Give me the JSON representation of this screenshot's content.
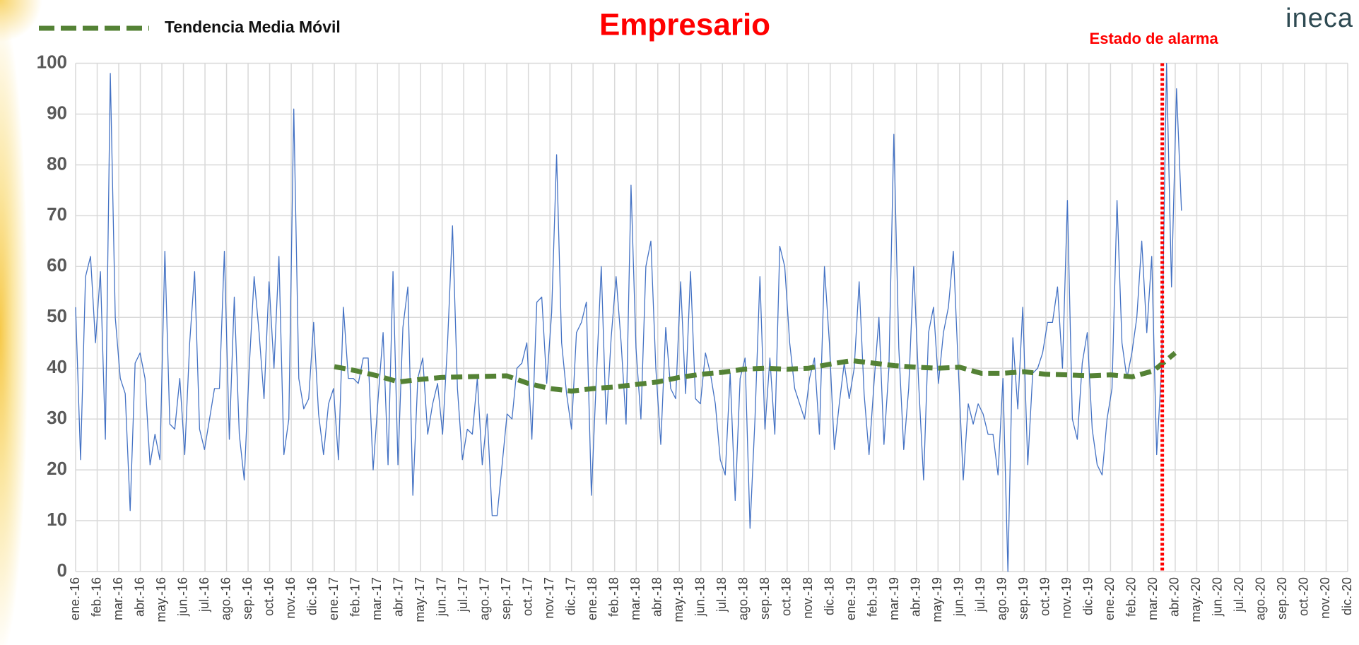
{
  "chart_data": {
    "type": "line",
    "title": "Empresario",
    "logo": "ineca",
    "xlim": [
      0,
      59
    ],
    "xticks": [
      {
        "value": 0,
        "label": "ene.-16"
      },
      {
        "value": 1,
        "label": "feb.-16"
      },
      {
        "value": 2,
        "label": "mar.-16"
      },
      {
        "value": 3,
        "label": "abr.-16"
      },
      {
        "value": 4,
        "label": "may.-16"
      },
      {
        "value": 5,
        "label": "jun.-16"
      },
      {
        "value": 6,
        "label": "jul.-16"
      },
      {
        "value": 7,
        "label": "ago.-16"
      },
      {
        "value": 8,
        "label": "sep.-16"
      },
      {
        "value": 9,
        "label": "oct.-16"
      },
      {
        "value": 10,
        "label": "nov.-16"
      },
      {
        "value": 11,
        "label": "dic.-16"
      },
      {
        "value": 12,
        "label": "ene.-17"
      },
      {
        "value": 13,
        "label": "feb.-17"
      },
      {
        "value": 14,
        "label": "mar.-17"
      },
      {
        "value": 15,
        "label": "abr.-17"
      },
      {
        "value": 16,
        "label": "may.-17"
      },
      {
        "value": 17,
        "label": "jun.-17"
      },
      {
        "value": 18,
        "label": "jul.-17"
      },
      {
        "value": 19,
        "label": "ago.-17"
      },
      {
        "value": 20,
        "label": "sep.-17"
      },
      {
        "value": 21,
        "label": "oct.-17"
      },
      {
        "value": 22,
        "label": "nov.-17"
      },
      {
        "value": 23,
        "label": "dic.-17"
      },
      {
        "value": 24,
        "label": "ene.-18"
      },
      {
        "value": 25,
        "label": "feb.-18"
      },
      {
        "value": 26,
        "label": "mar.-18"
      },
      {
        "value": 27,
        "label": "abr.-18"
      },
      {
        "value": 28,
        "label": "may.-18"
      },
      {
        "value": 29,
        "label": "jun.-18"
      },
      {
        "value": 30,
        "label": "jul.-18"
      },
      {
        "value": 31,
        "label": "ago.-18"
      },
      {
        "value": 32,
        "label": "sep.-18"
      },
      {
        "value": 33,
        "label": "oct.-18"
      },
      {
        "value": 34,
        "label": "nov.-18"
      },
      {
        "value": 35,
        "label": "dic.-18"
      },
      {
        "value": 36,
        "label": "ene.-19"
      },
      {
        "value": 37,
        "label": "feb.-19"
      },
      {
        "value": 38,
        "label": "mar.-19"
      },
      {
        "value": 39,
        "label": "abr.-19"
      },
      {
        "value": 40,
        "label": "may.-19"
      },
      {
        "value": 41,
        "label": "jun.-19"
      },
      {
        "value": 42,
        "label": "jul.-19"
      },
      {
        "value": 43,
        "label": "ago.-19"
      },
      {
        "value": 44,
        "label": "sep.-19"
      },
      {
        "value": 45,
        "label": "oct.-19"
      },
      {
        "value": 46,
        "label": "nov.-19"
      },
      {
        "value": 47,
        "label": "dic.-19"
      },
      {
        "value": 48,
        "label": "ene.-20"
      },
      {
        "value": 49,
        "label": "feb.-20"
      },
      {
        "value": 50,
        "label": "mar.-20"
      },
      {
        "value": 51,
        "label": "abr.-20"
      },
      {
        "value": 52,
        "label": "may.-20"
      },
      {
        "value": 53,
        "label": "jun.-20"
      },
      {
        "value": 54,
        "label": "jul.-20"
      },
      {
        "value": 55,
        "label": "ago.-20"
      },
      {
        "value": 56,
        "label": "sep.-20"
      },
      {
        "value": 57,
        "label": "oct.-20"
      },
      {
        "value": 58,
        "label": "nov.-20"
      },
      {
        "value": 59,
        "label": "dic.-20"
      }
    ],
    "ylim": [
      0,
      100
    ],
    "yticks": [
      0,
      10,
      20,
      30,
      40,
      50,
      60,
      70,
      80,
      90,
      100
    ],
    "grid": true,
    "series": [
      {
        "color": "#4472c4",
        "x": [
          0,
          0.23,
          0.46,
          0.69,
          0.92,
          1.15,
          1.38,
          1.61,
          1.84,
          2.07,
          2.3,
          2.53,
          2.76,
          2.99,
          3.22,
          3.45,
          3.68,
          3.91,
          4.14,
          4.37,
          4.6,
          4.83,
          5.06,
          5.29,
          5.52,
          5.75,
          5.98,
          6.21,
          6.44,
          6.67,
          6.9,
          7.13,
          7.36,
          7.59,
          7.82,
          8.05,
          8.28,
          8.51,
          8.74,
          8.97,
          9.2,
          9.43,
          9.66,
          9.89,
          10.12,
          10.35,
          10.58,
          10.81,
          11.04,
          11.27,
          11.5,
          11.73,
          11.96,
          12.19,
          12.42,
          12.65,
          12.88,
          13.11,
          13.34,
          13.57,
          13.8,
          14.03,
          14.26,
          14.49,
          14.72,
          14.95,
          15.18,
          15.41,
          15.64,
          15.87,
          16.1,
          16.33,
          16.56,
          16.79,
          17.02,
          17.25,
          17.48,
          17.71,
          17.94,
          18.17,
          18.4,
          18.63,
          18.86,
          19.09,
          19.32,
          19.55,
          19.78,
          20.01,
          20.24,
          20.47,
          20.7,
          20.93,
          21.16,
          21.39,
          21.62,
          21.85,
          22.08,
          22.31,
          22.54,
          22.77,
          23,
          23.23,
          23.46,
          23.69,
          23.92,
          24.15,
          24.38,
          24.61,
          24.84,
          25.07,
          25.3,
          25.53,
          25.76,
          25.99,
          26.22,
          26.45,
          26.68,
          26.91,
          27.14,
          27.37,
          27.6,
          27.83,
          28.06,
          28.29,
          28.52,
          28.75,
          28.98,
          29.21,
          29.44,
          29.67,
          29.9,
          30.13,
          30.36,
          30.59,
          30.82,
          31.05,
          31.28,
          31.51,
          31.74,
          31.97,
          32.2,
          32.43,
          32.66,
          32.89,
          33.12,
          33.35,
          33.58,
          33.81,
          34.04,
          34.27,
          34.5,
          34.73,
          34.96,
          35.19,
          35.42,
          35.65,
          35.88,
          36.11,
          36.34,
          36.57,
          36.8,
          37.03,
          37.26,
          37.49,
          37.72,
          37.95,
          38.18,
          38.41,
          38.64,
          38.87,
          39.1,
          39.33,
          39.56,
          39.79,
          40.02,
          40.25,
          40.48,
          40.71,
          40.94,
          41.17,
          41.4,
          41.63,
          41.86,
          42.09,
          42.32,
          42.55,
          42.78,
          43.01,
          43.24,
          43.47,
          43.7,
          43.93,
          44.16,
          44.39,
          44.62,
          44.85,
          45.08,
          45.31,
          45.54,
          45.77,
          46,
          46.23,
          46.46,
          46.69,
          46.92,
          47.15,
          47.38,
          47.61,
          47.84,
          48.07,
          48.3,
          48.53,
          48.76,
          48.99,
          49.22,
          49.45,
          49.68,
          49.91,
          50.14,
          50.37,
          50.6,
          50.83,
          51.06,
          51.29
        ],
        "values": [
          52,
          22,
          58,
          62,
          45,
          59,
          26,
          98,
          50,
          38,
          35,
          12,
          41,
          43,
          38,
          21,
          27,
          22,
          63,
          29,
          28,
          38,
          23,
          45,
          59,
          28,
          24,
          30,
          36,
          36,
          63,
          26,
          54,
          27,
          18,
          40,
          58,
          47,
          34,
          57,
          40,
          62,
          23,
          30,
          91,
          38,
          32,
          34,
          49,
          31,
          23,
          33,
          36,
          22,
          52,
          38,
          38,
          37,
          42,
          42,
          20,
          34,
          47,
          21,
          59,
          21,
          48,
          56,
          15,
          38,
          42,
          27,
          33,
          37,
          27,
          45,
          68,
          36,
          22,
          28,
          27,
          38,
          21,
          31,
          11,
          11,
          21,
          31,
          30,
          40,
          41,
          45,
          26,
          53,
          54,
          37,
          51,
          82,
          45,
          35,
          28,
          47,
          49,
          53,
          15,
          38,
          60,
          29,
          46,
          58,
          45,
          29,
          76,
          44,
          30,
          60,
          65,
          40,
          25,
          48,
          36,
          34,
          57,
          35,
          59,
          34,
          33,
          43,
          39,
          33,
          22,
          19,
          39,
          14,
          38,
          42,
          8.5,
          30,
          58,
          28,
          42,
          27,
          64,
          60,
          45,
          36,
          33,
          30,
          38,
          42,
          27,
          60,
          45,
          24,
          33,
          41,
          34,
          40,
          57,
          35,
          23,
          37,
          50,
          25,
          40,
          86,
          44,
          24,
          36,
          60,
          37,
          18,
          47,
          52,
          37,
          47,
          52,
          63,
          40,
          18,
          33,
          29,
          33,
          31,
          27,
          27,
          19,
          38,
          0,
          46,
          32,
          52,
          21,
          39,
          40,
          43,
          49,
          49,
          56,
          40,
          73,
          30,
          26,
          41,
          47,
          28,
          21,
          19,
          30,
          36,
          73,
          45,
          38,
          43,
          50,
          65,
          47,
          62,
          23,
          40,
          100,
          56,
          95,
          71
        ]
      },
      {
        "name": "Tendencia Media Móvil",
        "color": "#548235",
        "dashed": true,
        "x": [
          12,
          13,
          14,
          15,
          16,
          17,
          18,
          19,
          20,
          21,
          22,
          23,
          24,
          25,
          26,
          27,
          28,
          29,
          30,
          31,
          32,
          33,
          34,
          35,
          36,
          37,
          38,
          39,
          40,
          41,
          42,
          43,
          44,
          45,
          46,
          47,
          48,
          49,
          50,
          51
        ],
        "values": [
          40.3,
          39.5,
          38.5,
          37.3,
          37.8,
          38.2,
          38.3,
          38.4,
          38.5,
          37,
          36,
          35.5,
          36,
          36.3,
          36.8,
          37.3,
          38.2,
          38.8,
          39.2,
          39.8,
          40,
          39.8,
          40,
          40.8,
          41.5,
          41,
          40.5,
          40.2,
          40,
          40.2,
          39,
          39,
          39.3,
          38.8,
          38.7,
          38.5,
          38.7,
          38.3,
          39.5,
          43
        ]
      }
    ],
    "legend": "top-left",
    "annotations": [
      {
        "text": "Estado de alarma",
        "x": 50.4,
        "color": "#ff0000"
      }
    ]
  }
}
